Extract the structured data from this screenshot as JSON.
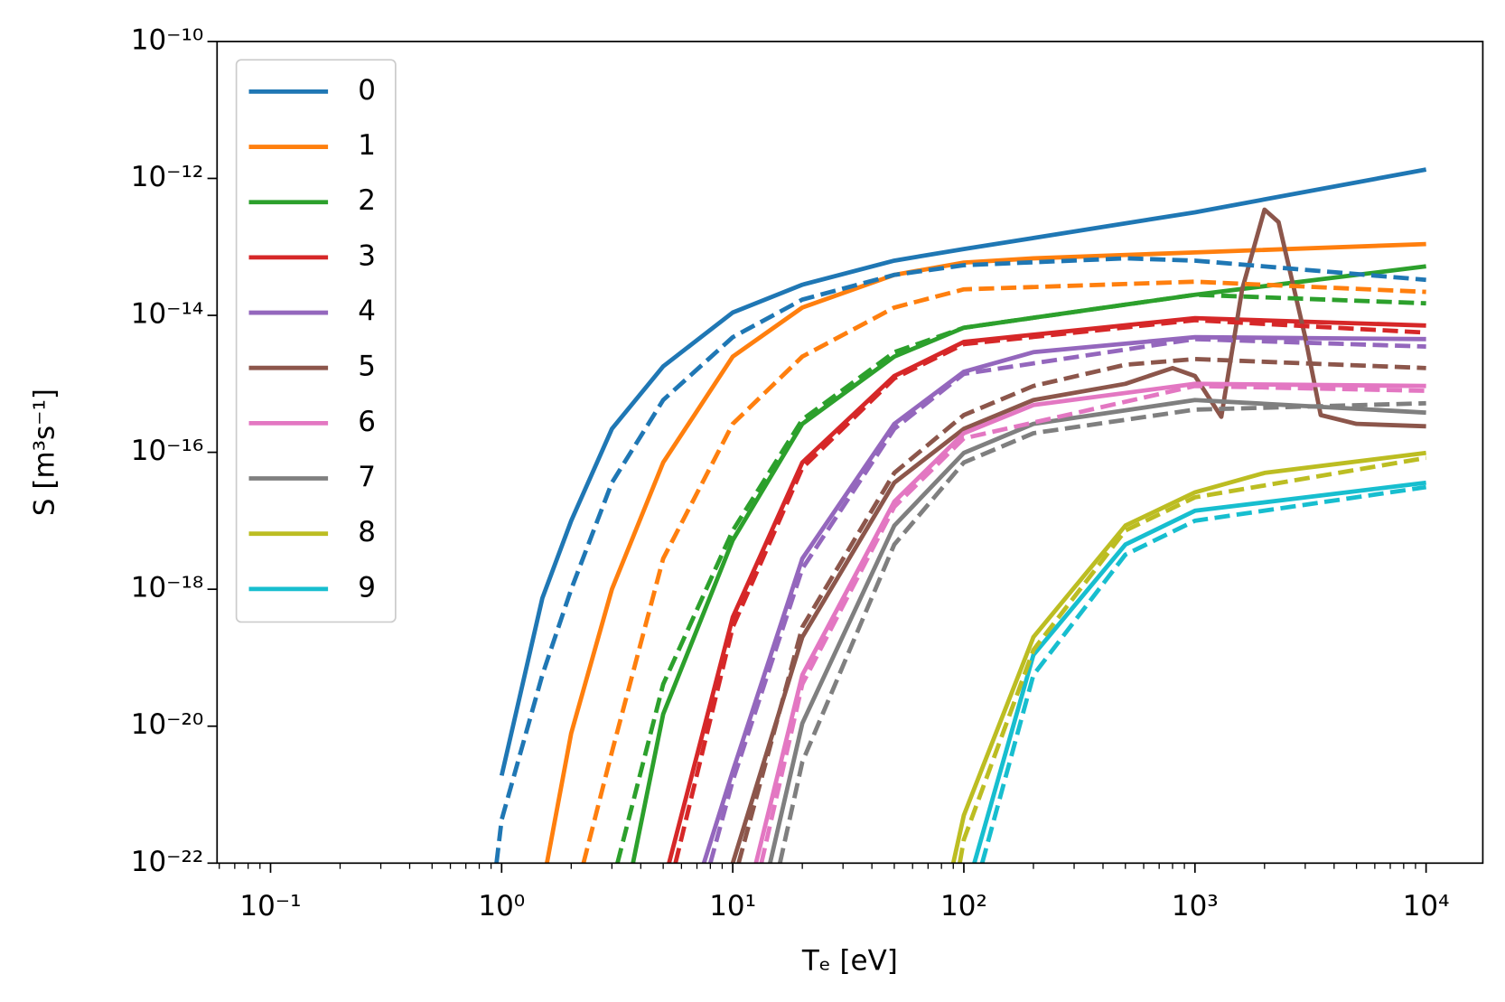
{
  "chart_data": {
    "type": "line",
    "xlabel": "Tₑ [eV]",
    "ylabel": "S [m³s⁻¹]",
    "xscale": "log",
    "yscale": "log",
    "xlim": [
      0.0587,
      17600
    ],
    "ylim": [
      1e-22,
      1e-10
    ],
    "xticks": [
      {
        "value": 0.1,
        "label": "10⁻¹"
      },
      {
        "value": 1,
        "label": "10⁰"
      },
      {
        "value": 10,
        "label": "10¹"
      },
      {
        "value": 100,
        "label": "10²"
      },
      {
        "value": 1000,
        "label": "10³"
      },
      {
        "value": 10000,
        "label": "10⁴"
      }
    ],
    "yticks": [
      {
        "value": 1e-22,
        "label": "10⁻²²"
      },
      {
        "value": 1e-20,
        "label": "10⁻²⁰"
      },
      {
        "value": 1e-18,
        "label": "10⁻¹⁸"
      },
      {
        "value": 1e-16,
        "label": "10⁻¹⁶"
      },
      {
        "value": 1e-14,
        "label": "10⁻¹⁴"
      },
      {
        "value": 1e-12,
        "label": "10⁻¹²"
      },
      {
        "value": 1e-10,
        "label": "10⁻¹⁰"
      }
    ],
    "legend": "upper left",
    "series": [
      {
        "name": "0",
        "color": "#1f77b4",
        "dashed": false,
        "x": [
          1,
          1.5,
          2,
          3,
          5,
          10,
          20,
          50,
          100,
          1000,
          10000
        ],
        "values": [
          1.9e-21,
          7.4e-19,
          1e-17,
          2.2e-16,
          1.8e-15,
          1.1e-14,
          2.8e-14,
          6.3e-14,
          9.3e-14,
          3.2e-13,
          1.35e-12
        ]
      },
      {
        "name": "1",
        "color": "#ff7f0e",
        "dashed": false,
        "x": [
          1.57,
          2,
          3,
          5,
          10,
          20,
          50,
          100,
          200,
          1000,
          10000
        ],
        "values": [
          1e-22,
          7.9e-21,
          1e-18,
          7.1e-17,
          2.5e-15,
          1.3e-14,
          3.9e-14,
          5.9e-14,
          6.8e-14,
          8.3e-14,
          1.1e-13
        ]
      },
      {
        "name": "2",
        "color": "#2ca02c",
        "dashed": false,
        "x": [
          3.7,
          5,
          10,
          20,
          50,
          100,
          1000,
          10000
        ],
        "values": [
          1e-22,
          1.5e-20,
          5.2e-18,
          2.6e-16,
          2.5e-15,
          6.6e-15,
          2e-14,
          5.2e-14
        ]
      },
      {
        "name": "3",
        "color": "#d62728",
        "dashed": false,
        "x": [
          5.3,
          10,
          20,
          50,
          100,
          1000,
          10000
        ],
        "values": [
          1e-22,
          3.9e-19,
          7.1e-17,
          1.3e-15,
          4.1e-15,
          9.1e-15,
          7.1e-15
        ]
      },
      {
        "name": "4",
        "color": "#9467bd",
        "dashed": false,
        "x": [
          7.5,
          10,
          20,
          50,
          100,
          200,
          1000,
          10000
        ],
        "values": [
          1e-22,
          2.2e-21,
          2.8e-18,
          2.6e-16,
          1.5e-15,
          2.9e-15,
          4.8e-15,
          4.5e-15
        ]
      },
      {
        "name": "5",
        "color": "#8c564b",
        "dashed": false,
        "x": [
          10,
          20,
          50,
          100,
          200,
          500,
          800,
          1000,
          1300,
          1600,
          2000,
          2300,
          3000,
          3500,
          5000,
          10000
        ],
        "values": [
          1e-22,
          2e-19,
          3.6e-17,
          2.2e-16,
          5.8e-16,
          1e-15,
          1.7e-15,
          1.3e-15,
          3.3e-16,
          2.4e-14,
          3.5e-13,
          2.3e-13,
          4.8e-15,
          3.5e-16,
          2.6e-16,
          2.4e-16
        ]
      },
      {
        "name": "6",
        "color": "#e377c2",
        "dashed": false,
        "x": [
          12.6,
          20,
          50,
          100,
          200,
          1000,
          10000
        ],
        "values": [
          1e-22,
          5.6e-20,
          1.9e-17,
          1.9e-16,
          4.9e-16,
          1e-15,
          9.3e-16
        ]
      },
      {
        "name": "7",
        "color": "#7f7f7f",
        "dashed": false,
        "x": [
          14.5,
          20,
          50,
          100,
          200,
          1000,
          10000
        ],
        "values": [
          1e-22,
          1.1e-20,
          8.5e-18,
          9.8e-17,
          2.6e-16,
          5.8e-16,
          3.8e-16
        ]
      },
      {
        "name": "8",
        "color": "#bcbd22",
        "dashed": false,
        "x": [
          90,
          100,
          200,
          500,
          1000,
          2000,
          10000
        ],
        "values": [
          1e-22,
          5e-22,
          2e-19,
          8.5e-18,
          2.6e-17,
          5e-17,
          9.8e-17
        ]
      },
      {
        "name": "9",
        "color": "#17becf",
        "dashed": false,
        "x": [
          111,
          200,
          500,
          1000,
          10000
        ],
        "values": [
          1e-22,
          1.1e-19,
          4.5e-18,
          1.4e-17,
          3.6e-17
        ]
      },
      {
        "color": "#1f77b4",
        "dashed": true,
        "x": [
          0.95,
          1,
          1.5,
          2,
          3,
          5,
          10,
          20,
          50,
          100,
          500,
          1000,
          10000
        ],
        "values": [
          1e-22,
          4.3e-22,
          5.6e-20,
          1e-18,
          3.6e-17,
          5.8e-16,
          4.8e-15,
          1.7e-14,
          3.9e-14,
          5.4e-14,
          6.8e-14,
          6.3e-14,
          3.3e-14
        ]
      },
      {
        "color": "#ff7f0e",
        "dashed": true,
        "x": [
          2.26,
          3,
          5,
          10,
          20,
          50,
          100,
          1000,
          10000
        ],
        "values": [
          1e-22,
          4.2e-21,
          2.8e-18,
          2.6e-16,
          2.5e-15,
          1.3e-14,
          2.4e-14,
          3.1e-14,
          2.2e-14
        ]
      },
      {
        "color": "#2ca02c",
        "dashed": true,
        "x": [
          3.17,
          5,
          10,
          20,
          50,
          100,
          1000,
          10000
        ],
        "values": [
          1e-22,
          4.1e-20,
          7.2e-18,
          3e-16,
          2.9e-15,
          6.6e-15,
          2e-14,
          1.5e-14
        ]
      },
      {
        "color": "#d62728",
        "dashed": true,
        "x": [
          5.65,
          10,
          20,
          50,
          100,
          1000,
          10000
        ],
        "values": [
          1e-22,
          2.8e-19,
          5.9e-17,
          1.2e-15,
          3.8e-15,
          8.5e-15,
          5.6e-15
        ]
      },
      {
        "color": "#9467bd",
        "dashed": true,
        "x": [
          8,
          10,
          20,
          50,
          100,
          1000,
          10000
        ],
        "values": [
          1e-22,
          1.6e-21,
          2e-18,
          2.2e-16,
          1.4e-15,
          4.5e-15,
          3.5e-15
        ]
      },
      {
        "color": "#8c564b",
        "dashed": true,
        "x": [
          10.6,
          20,
          50,
          100,
          200,
          500,
          1000,
          10000
        ],
        "values": [
          1e-22,
          2.8e-19,
          5e-17,
          3.5e-16,
          9.3e-16,
          1.9e-15,
          2.3e-15,
          1.7e-15
        ]
      },
      {
        "color": "#e377c2",
        "dashed": true,
        "x": [
          13.3,
          20,
          50,
          100,
          1000,
          10000
        ],
        "values": [
          1e-22,
          4.1e-20,
          1.6e-17,
          1.6e-16,
          9.3e-16,
          7.9e-16
        ]
      },
      {
        "color": "#7f7f7f",
        "dashed": true,
        "x": [
          16,
          20,
          50,
          100,
          200,
          1000,
          10000
        ],
        "values": [
          1e-22,
          3e-21,
          4.5e-18,
          7.1e-17,
          1.9e-16,
          4.2e-16,
          5.2e-16
        ]
      },
      {
        "color": "#bcbd22",
        "dashed": true,
        "x": [
          96,
          100,
          200,
          500,
          1000,
          10000
        ],
        "values": [
          1e-22,
          2.2e-22,
          1.3e-19,
          7.2e-18,
          2.2e-17,
          8.3e-17
        ]
      },
      {
        "color": "#17becf",
        "dashed": true,
        "x": [
          120,
          200,
          500,
          1000,
          10000
        ],
        "values": [
          1e-22,
          5.6e-20,
          3.2e-18,
          1e-17,
          3.1e-17
        ]
      }
    ]
  }
}
